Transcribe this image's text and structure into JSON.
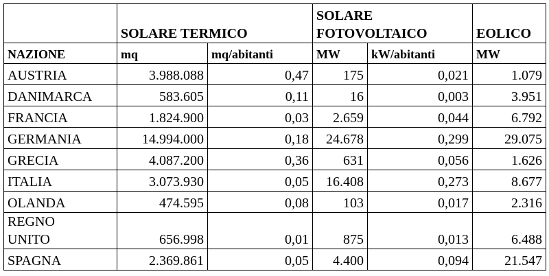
{
  "table": {
    "group_headers": [
      "SOLARE TERMICO",
      "SOLARE\nFOTOVOLTAICO",
      "EOLICO"
    ],
    "columns": [
      "NAZIONE",
      "mq",
      "mq/abitanti",
      "MW",
      "kW/abitanti",
      "MW"
    ],
    "rows": [
      [
        "AUSTRIA",
        "3.988.088",
        "0,47",
        "175",
        "0,021",
        "1.079"
      ],
      [
        "DANIMARCA",
        "583.605",
        "0,11",
        "16",
        "0,003",
        "3.951"
      ],
      [
        "FRANCIA",
        "1.824.900",
        "0,03",
        "2.659",
        "0,044",
        "6.792"
      ],
      [
        "GERMANIA",
        "14.994.000",
        "0,18",
        "24.678",
        "0,299",
        "29.075"
      ],
      [
        "GRECIA",
        "4.087.200",
        "0,36",
        "631",
        "0,056",
        "1.626"
      ],
      [
        "ITALIA",
        "3.073.930",
        "0,05",
        "16.408",
        "0,273",
        "8.677"
      ],
      [
        "OLANDA",
        "474.595",
        "0,08",
        "103",
        "0,017",
        "2.316"
      ],
      [
        "REGNO\nUNITO",
        "656.998",
        "0,01",
        "875",
        "0,013",
        "6.488"
      ],
      [
        "SPAGNA",
        "2.369.861",
        "0,05",
        "4.400",
        "0,094",
        "21.547"
      ]
    ]
  }
}
